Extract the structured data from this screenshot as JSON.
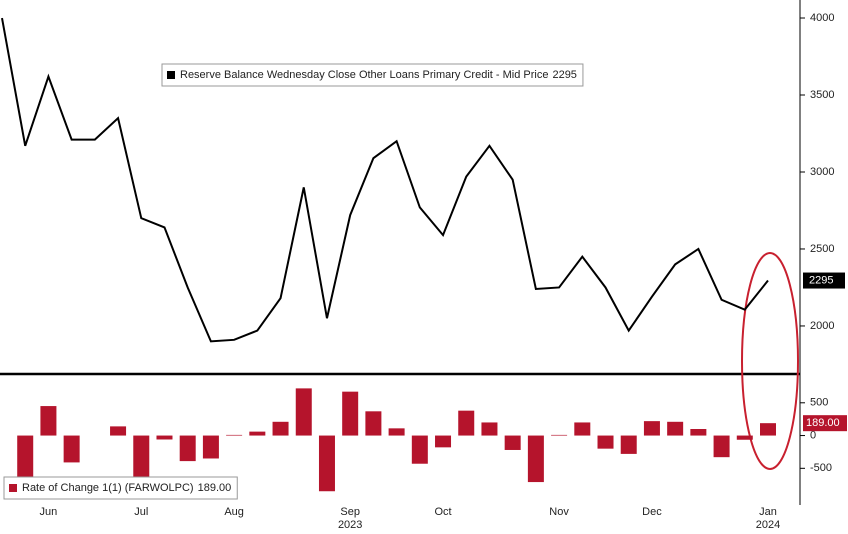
{
  "chart_data": [
    {
      "type": "line",
      "series": [
        {
          "name": "Reserve Balance Wednesday Close Other Loans Primary Credit - Mid Price",
          "color": "#000000",
          "values": [
            4000,
            3170,
            3620,
            3210,
            3210,
            3350,
            2700,
            2640,
            2250,
            1900,
            1910,
            1970,
            2180,
            2900,
            2050,
            2720,
            3090,
            3200,
            2770,
            2590,
            2970,
            3170,
            2950,
            2240,
            2250,
            2450,
            2250,
            1970,
            2190,
            2400,
            2500,
            2170,
            2106,
            2295
          ]
        }
      ],
      "ylim": [
        1688,
        4117
      ],
      "yticks": [
        2000,
        2500,
        3000,
        3500,
        4000
      ],
      "legend": "top-left"
    },
    {
      "type": "bar",
      "categories": [
        null,
        null,
        "Jun",
        null,
        null,
        null,
        "Jul",
        null,
        null,
        null,
        "Aug",
        null,
        null,
        null,
        null,
        "Sep",
        null,
        null,
        null,
        "Oct",
        null,
        null,
        null,
        null,
        "Nov",
        null,
        null,
        null,
        "Dec",
        null,
        null,
        null,
        null,
        "Jan"
      ],
      "years": [
        null,
        null,
        null,
        null,
        null,
        null,
        null,
        null,
        null,
        null,
        null,
        null,
        null,
        null,
        null,
        "2023",
        null,
        null,
        null,
        null,
        null,
        null,
        null,
        null,
        null,
        null,
        null,
        null,
        null,
        null,
        null,
        null,
        null,
        "2024"
      ],
      "series": [
        {
          "name": "Rate of Change 1(1) (FARWOLPC)",
          "color": "#b5142c",
          "values": [
            null,
            -830,
            450,
            -410,
            0,
            140,
            -650,
            -60,
            -390,
            -350,
            10,
            60,
            210,
            720,
            -850,
            670,
            370,
            110,
            -430,
            -180,
            380,
            200,
            -220,
            -710,
            10,
            200,
            -200,
            -280,
            220,
            210,
            100,
            -330,
            -64,
            189
          ],
          "value_labels": [
            null,
            null,
            null,
            null,
            null,
            null,
            null,
            null,
            null,
            null,
            null,
            null,
            null,
            null,
            null,
            null,
            null,
            null,
            null,
            null,
            null,
            null,
            null,
            null,
            null,
            null,
            null,
            null,
            null,
            null,
            null,
            null,
            null,
            "189.00"
          ]
        }
      ],
      "ylim": [
        -1060,
        909
      ],
      "yticks": [
        -500,
        0,
        500
      ],
      "legend": "bottom-left"
    }
  ]
}
